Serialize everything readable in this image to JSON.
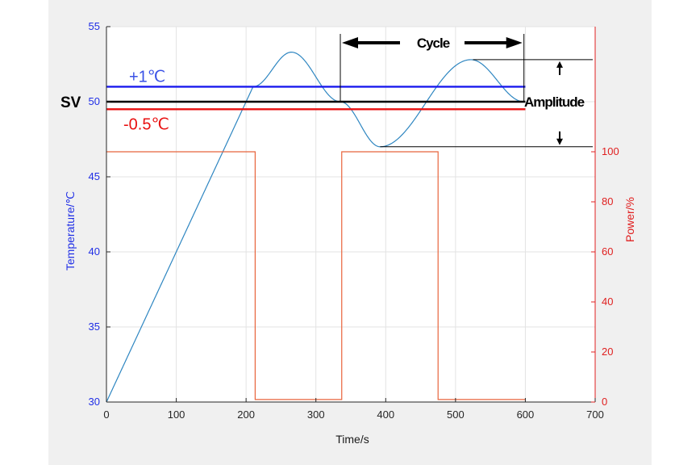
{
  "chart_data": {
    "type": "line",
    "xlabel": "Time/s",
    "ylabel_left": "Temperature/℃",
    "ylabel_right": "Power/%",
    "xlim": [
      0,
      700
    ],
    "ylim_left": [
      30,
      55
    ],
    "ylim_right": [
      0,
      150
    ],
    "x_ticks": [
      "0",
      "100",
      "200",
      "300",
      "400",
      "500",
      "600",
      "700"
    ],
    "y_left_ticks": [
      "30",
      "35",
      "40",
      "45",
      "50",
      "55"
    ],
    "y_right_ticks": [
      "0",
      "20",
      "40",
      "60",
      "80",
      "100"
    ],
    "grid": true,
    "series": [
      {
        "axis": "left",
        "color": "#2e86c1",
        "x": [
          0,
          210,
          265,
          335,
          392,
          522,
          598
        ],
        "y": [
          30,
          51.0,
          53.3,
          50.0,
          47.0,
          52.8,
          50.0
        ]
      },
      {
        "axis": "right",
        "color": "#e8643c",
        "x": [
          0,
          213,
          213,
          337,
          337,
          475,
          475,
          600
        ],
        "y": [
          100,
          100,
          1,
          1,
          100,
          100,
          1,
          1
        ]
      }
    ],
    "reference_lines": [
      {
        "label": "+1℃",
        "y": 51,
        "color": "#1a1aee"
      },
      {
        "label": "SV",
        "y": 50,
        "color": "#000000"
      },
      {
        "label": "-0.5℃",
        "y": 49.5,
        "color": "#e81010"
      }
    ],
    "annotations": {
      "cycle_label": "Cycle",
      "amplitude_label": "Amplitude",
      "sv_tick_label": "50"
    }
  }
}
